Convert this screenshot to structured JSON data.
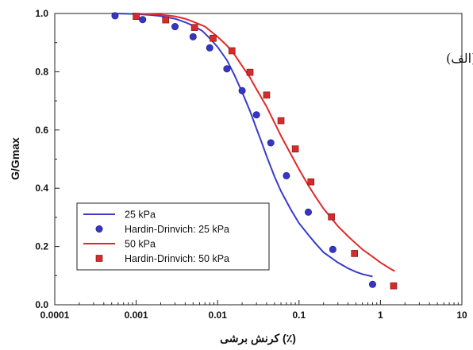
{
  "chart_data": {
    "type": "scatter",
    "title": "",
    "xlabel": "کرنش برشی (٪)",
    "ylabel": "G/Gmax",
    "xscale": "log",
    "xlim": [
      0.0001,
      10
    ],
    "ylim": [
      0.0,
      1.0
    ],
    "x_tick_labels": [
      "0.0001",
      "0.001",
      "0.01",
      "0.1",
      "1",
      "10"
    ],
    "y_tick_labels": [
      "0.0",
      "0.2",
      "0.4",
      "0.6",
      "0.8",
      "1.0"
    ],
    "annotation": "(الف)",
    "legend_position": "bottom-left",
    "series": [
      {
        "name": "25 kPa",
        "kind": "line",
        "color": "#3a3acc",
        "points": [
          [
            0.0005,
            1.0
          ],
          [
            0.0008,
            0.999
          ],
          [
            0.001,
            0.998
          ],
          [
            0.0015,
            0.995
          ],
          [
            0.002,
            0.991
          ],
          [
            0.003,
            0.982
          ],
          [
            0.004,
            0.97
          ],
          [
            0.005,
            0.958
          ],
          [
            0.0065,
            0.94
          ],
          [
            0.008,
            0.915
          ],
          [
            0.01,
            0.885
          ],
          [
            0.013,
            0.84
          ],
          [
            0.016,
            0.79
          ],
          [
            0.02,
            0.73
          ],
          [
            0.025,
            0.665
          ],
          [
            0.03,
            0.605
          ],
          [
            0.035,
            0.555
          ],
          [
            0.04,
            0.51
          ],
          [
            0.05,
            0.44
          ],
          [
            0.06,
            0.39
          ],
          [
            0.07,
            0.355
          ],
          [
            0.08,
            0.325
          ],
          [
            0.1,
            0.28
          ],
          [
            0.13,
            0.24
          ],
          [
            0.16,
            0.21
          ],
          [
            0.2,
            0.18
          ],
          [
            0.3,
            0.145
          ],
          [
            0.4,
            0.125
          ],
          [
            0.5,
            0.113
          ],
          [
            0.6,
            0.105
          ],
          [
            0.8,
            0.097
          ]
        ]
      },
      {
        "name": "Hardin-Drinvich: 25 kPa",
        "kind": "circle",
        "color": "#3535c8",
        "points": [
          [
            0.00055,
            0.992
          ],
          [
            0.0012,
            0.979
          ],
          [
            0.003,
            0.955
          ],
          [
            0.005,
            0.92
          ],
          [
            0.008,
            0.882
          ],
          [
            0.013,
            0.81
          ],
          [
            0.02,
            0.735
          ],
          [
            0.03,
            0.652
          ],
          [
            0.045,
            0.556
          ],
          [
            0.07,
            0.443
          ],
          [
            0.13,
            0.318
          ],
          [
            0.26,
            0.19
          ],
          [
            0.8,
            0.07
          ]
        ]
      },
      {
        "name": "50 kPa",
        "kind": "line",
        "color": "#e02a2a",
        "points": [
          [
            0.0009,
            1.0
          ],
          [
            0.0015,
            0.998
          ],
          [
            0.002,
            0.996
          ],
          [
            0.003,
            0.99
          ],
          [
            0.004,
            0.982
          ],
          [
            0.005,
            0.972
          ],
          [
            0.007,
            0.955
          ],
          [
            0.01,
            0.92
          ],
          [
            0.013,
            0.89
          ],
          [
            0.016,
            0.86
          ],
          [
            0.02,
            0.82
          ],
          [
            0.025,
            0.78
          ],
          [
            0.03,
            0.74
          ],
          [
            0.04,
            0.68
          ],
          [
            0.05,
            0.625
          ],
          [
            0.06,
            0.58
          ],
          [
            0.07,
            0.545
          ],
          [
            0.08,
            0.515
          ],
          [
            0.1,
            0.465
          ],
          [
            0.13,
            0.41
          ],
          [
            0.16,
            0.37
          ],
          [
            0.2,
            0.33
          ],
          [
            0.3,
            0.27
          ],
          [
            0.4,
            0.235
          ],
          [
            0.5,
            0.21
          ],
          [
            0.6,
            0.19
          ],
          [
            0.8,
            0.165
          ],
          [
            1.0,
            0.145
          ],
          [
            1.3,
            0.125
          ],
          [
            1.5,
            0.115
          ]
        ]
      },
      {
        "name": "Hardin-Drinvich: 50 kPa",
        "kind": "square",
        "color": "#d42c2c",
        "points": [
          [
            0.001,
            0.99
          ],
          [
            0.0023,
            0.978
          ],
          [
            0.0052,
            0.952
          ],
          [
            0.0088,
            0.915
          ],
          [
            0.015,
            0.872
          ],
          [
            0.025,
            0.798
          ],
          [
            0.04,
            0.72
          ],
          [
            0.06,
            0.632
          ],
          [
            0.09,
            0.535
          ],
          [
            0.14,
            0.422
          ],
          [
            0.25,
            0.302
          ],
          [
            0.48,
            0.176
          ],
          [
            1.45,
            0.065
          ]
        ]
      }
    ]
  }
}
